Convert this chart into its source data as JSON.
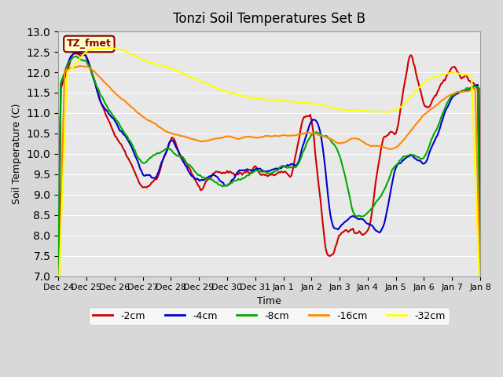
{
  "title": "Tonzi Soil Temperatures Set B",
  "xlabel": "Time",
  "ylabel": "Soil Temperature (C)",
  "ylim": [
    7.0,
    13.0
  ],
  "yticks": [
    7.0,
    7.5,
    8.0,
    8.5,
    9.0,
    9.5,
    10.0,
    10.5,
    11.0,
    11.5,
    12.0,
    12.5,
    13.0
  ],
  "bg_color": "#e8e8e8",
  "legend_label": "TZ_fmet",
  "series_colors": {
    "-2cm": "#cc0000",
    "-4cm": "#0000cc",
    "-8cm": "#00aa00",
    "-16cm": "#ff8800",
    "-32cm": "#ffff00"
  },
  "series_lw": 1.5,
  "xtick_labels": [
    "Dec 24",
    "Dec 25",
    "Dec 26",
    "Dec 27",
    "Dec 28",
    "Dec 29",
    "Dec 30",
    "Dec 31",
    "Jan 1",
    "Jan 2",
    "Jan 3",
    "Jan 4",
    "Jan 5",
    "Jan 6",
    "Jan 7",
    "Jan 8"
  ],
  "n_points": 336
}
